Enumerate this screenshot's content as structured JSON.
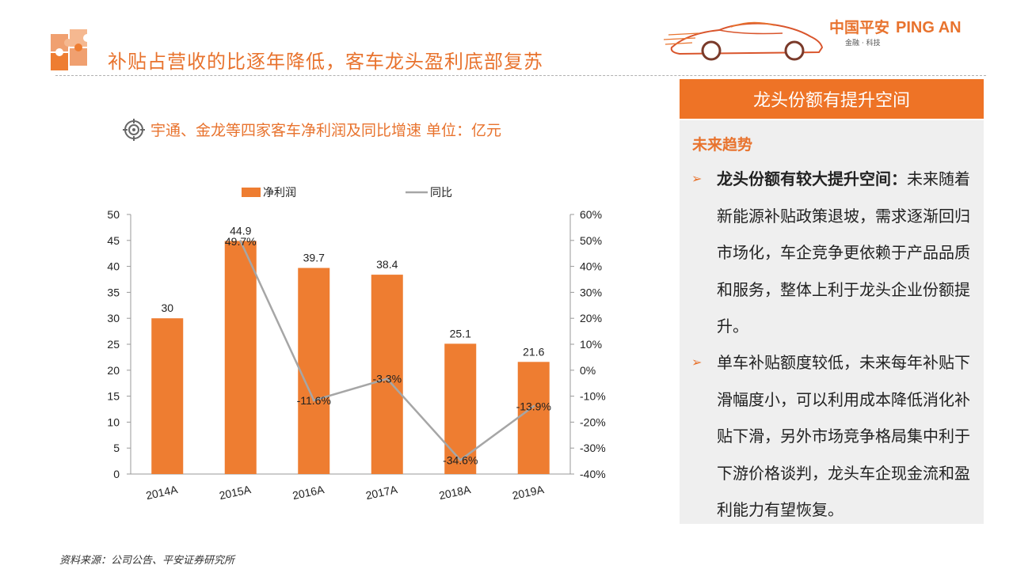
{
  "header": {
    "title": "补贴占营收的比逐年降低，客车龙头盈利底部复苏",
    "brand_cn": "中国平安",
    "brand_en": "PING AN",
    "brand_sub": "金融 · 科技"
  },
  "chart_subtitle": "宇通、金龙等四家客车净利润及同比增速 单位：亿元",
  "chart_data": {
    "type": "bar",
    "categories": [
      "2014A",
      "2015A",
      "2016A",
      "2017A",
      "2018A",
      "2019A"
    ],
    "series": [
      {
        "name": "净利润",
        "type": "bar",
        "axis": "left",
        "values": [
          30,
          44.9,
          39.7,
          38.4,
          25.1,
          21.6
        ],
        "labels": [
          "30",
          "44.9",
          "39.7",
          "38.4",
          "25.1",
          "21.6"
        ]
      },
      {
        "name": "同比",
        "type": "line",
        "axis": "right",
        "values": [
          null,
          49.7,
          -11.6,
          -3.3,
          -34.6,
          -13.9
        ],
        "labels": [
          "",
          "49.7%",
          "-11.6%",
          "-3.3%",
          "-34.6%",
          "-13.9%"
        ]
      }
    ],
    "ylim": [
      0,
      50
    ],
    "y2lim": [
      -40,
      60
    ],
    "yticks": [
      "50",
      "45",
      "40",
      "35",
      "30",
      "25",
      "20",
      "15",
      "10",
      "5",
      "0"
    ],
    "y2ticks": [
      "60%",
      "50%",
      "40%",
      "30%",
      "20%",
      "10%",
      "0%",
      "-10%",
      "-20%",
      "-30%",
      "-40%"
    ],
    "legend_position": "top",
    "grid": false,
    "colors": {
      "bar": "#ee7d31",
      "line": "#a6a6a6"
    }
  },
  "panel": {
    "header": "龙头份额有提升空间",
    "section": "未来趋势",
    "bullets": [
      {
        "bold": "龙头份额有较大提升空间：",
        "text": "未来随着新能源补贴政策退坡，需求逐渐回归市场化，车企竞争更依赖于产品品质和服务，整体上利于龙头企业份额提升。"
      },
      {
        "bold": "",
        "text": "单车补贴额度较低，未来每年补贴下滑幅度小，可以利用成本降低消化补贴下滑，另外市场竞争格局集中利于下游价格谈判，龙头车企现金流和盈利能力有望恢复。"
      }
    ]
  },
  "source": "资料来源：公司公告、平安证券研究所",
  "colors": {
    "accent": "#e8732e",
    "panel_bg": "#efefef"
  }
}
